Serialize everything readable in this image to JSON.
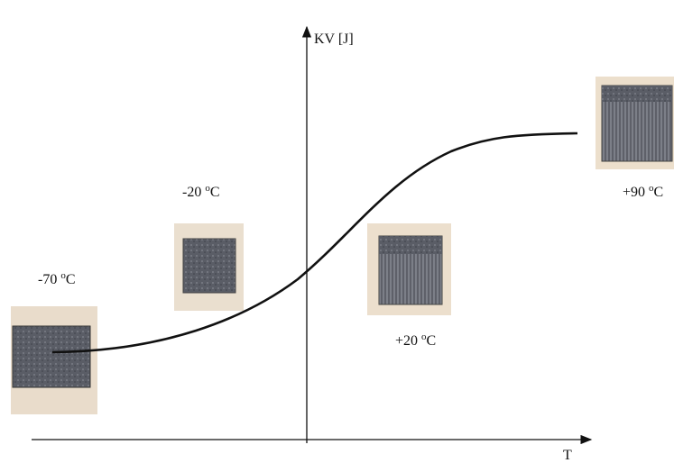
{
  "axes": {
    "y_label": "KV [J]",
    "x_label": "T"
  },
  "specimens": [
    {
      "value": "-70 ",
      "sup": "o",
      "unit": "C"
    },
    {
      "value": "-20 ",
      "sup": "o",
      "unit": "C"
    },
    {
      "value": "+20 ",
      "sup": "o",
      "unit": "C"
    },
    {
      "value": "+90 ",
      "sup": "o",
      "unit": "C"
    }
  ]
}
